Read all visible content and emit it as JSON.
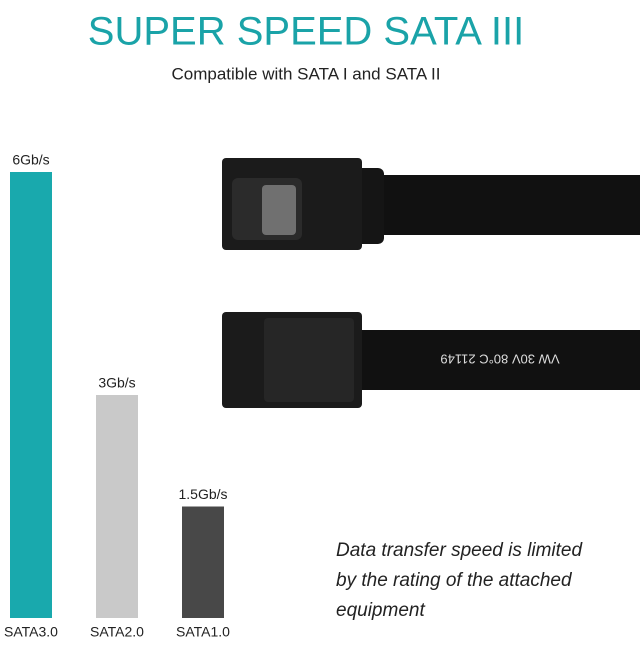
{
  "chart_data": {
    "type": "bar",
    "title": "SUPER SPEED SATA III",
    "subtitle": "Compatible with SATA I and SATA II",
    "categories": [
      "SATA3.0",
      "SATA2.0",
      "SATA1.0"
    ],
    "values": [
      6,
      3,
      1.5
    ],
    "value_labels": [
      "6Gb/s",
      "3Gb/s",
      "1.5Gb/s"
    ],
    "colors": [
      "#19a9ad",
      "#c9c9c9",
      "#484848"
    ],
    "note": [
      "Data transfer speed is limited",
      "by the rating of the attached",
      "equipment"
    ],
    "cable_print": "VW   30V   80°C   21149"
  }
}
